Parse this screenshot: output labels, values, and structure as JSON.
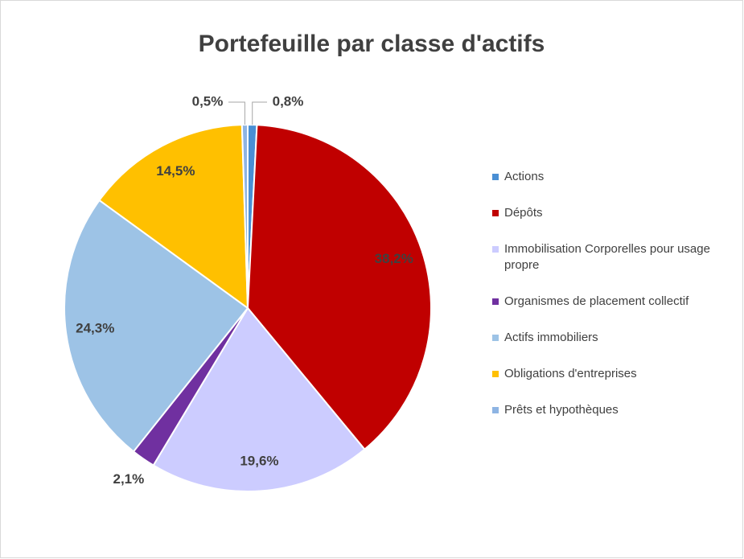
{
  "chart_data": {
    "type": "pie",
    "title": "Portefeuille par classe d'actifs",
    "categories": [
      "Actions",
      "Dépôts",
      "Immobilisation Corporelles pour usage propre",
      "Organismes de placement collectif",
      "Actifs immobiliers",
      "Obligations d'entreprises",
      "Prêts et hypothèques"
    ],
    "values": [
      0.8,
      38.2,
      19.6,
      2.1,
      24.3,
      14.5,
      0.5
    ],
    "value_labels": [
      "0,8%",
      "38,2%",
      "19,6%",
      "2,1%",
      "24,3%",
      "14,5%",
      "0,5%"
    ],
    "colors": [
      "#4a8fd4",
      "#c00000",
      "#ccccff",
      "#7030a0",
      "#9dc3e6",
      "#ffc000",
      "#8eb4e3"
    ],
    "legend": "right"
  }
}
